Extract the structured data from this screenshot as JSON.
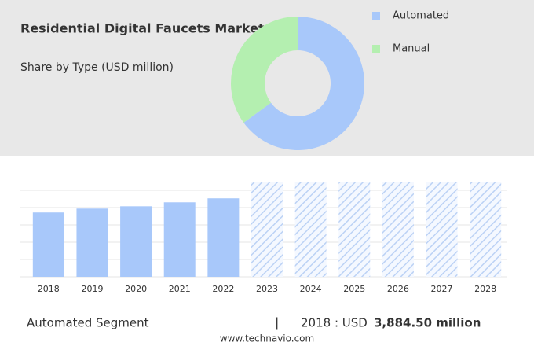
{
  "chart_data": [
    {
      "type": "pie",
      "title": "Residential Digital Faucets Market",
      "subtitle": "Share by Type (USD million)",
      "categories": [
        "Automated",
        "Manual"
      ],
      "values": [
        65,
        35
      ],
      "colors": [
        "#a8c8fa",
        "#b4efb0"
      ],
      "donut": true
    },
    {
      "type": "bar",
      "categories": [
        "2018",
        "2019",
        "2020",
        "2021",
        "2022",
        "2023",
        "2024",
        "2025",
        "2026",
        "2027",
        "2028"
      ],
      "values": [
        3884.5,
        4120,
        4260,
        4500,
        4740,
        null,
        null,
        null,
        null,
        null,
        null
      ],
      "color": "#a8c8fa",
      "ylim": [
        0,
        5700
      ]
    }
  ],
  "footer": {
    "segment": "Automated Segment",
    "separator": "|",
    "prefix": "2018 : USD",
    "value": "3,884.50 million"
  },
  "source": "www.technavio.com"
}
